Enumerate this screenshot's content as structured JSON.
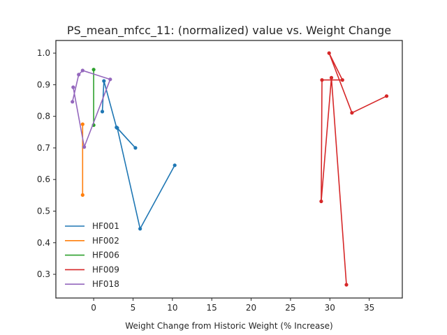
{
  "chart_data": {
    "type": "line",
    "title": "PS_mean_mfcc_11: (normalized) value vs. Weight Change",
    "xlabel": "Weight Change from Historic Weight (% Increase)",
    "ylabel": "",
    "xlim": [
      -4.8,
      39.2
    ],
    "ylim": [
      0.225,
      1.04
    ],
    "xticks": [
      0,
      5,
      10,
      15,
      20,
      25,
      30,
      35
    ],
    "yticks": [
      0.3,
      0.4,
      0.5,
      0.6,
      0.7,
      0.8,
      0.9,
      1.0
    ],
    "xtick_labels": [
      "0",
      "5",
      "10",
      "15",
      "20",
      "25",
      "30",
      "35"
    ],
    "ytick_labels": [
      "0.3",
      "0.4",
      "0.5",
      "0.6",
      "0.7",
      "0.8",
      "0.9",
      "1.0"
    ],
    "grid": false,
    "legend_position": "lower-left",
    "series": [
      {
        "name": "HF001",
        "color": "#1f77b4",
        "points": [
          [
            1.1,
            0.815
          ],
          [
            1.3,
            0.912
          ],
          [
            2.9,
            0.765
          ],
          [
            5.3,
            0.7
          ],
          [
            3.0,
            0.763
          ],
          [
            5.9,
            0.444
          ],
          [
            10.3,
            0.645
          ]
        ]
      },
      {
        "name": "HF002",
        "color": "#ff7f0e",
        "points": [
          [
            -1.4,
            0.775
          ],
          [
            -1.4,
            0.551
          ]
        ]
      },
      {
        "name": "HF006",
        "color": "#2ca02c",
        "points": [
          [
            0.0,
            0.948
          ],
          [
            0.0,
            0.772
          ]
        ]
      },
      {
        "name": "HF009",
        "color": "#d62728",
        "points": [
          [
            32.1,
            0.267
          ],
          [
            30.2,
            0.922
          ],
          [
            28.9,
            0.531
          ],
          [
            29.0,
            0.915
          ],
          [
            31.6,
            0.915
          ],
          [
            29.9,
            1.0
          ],
          [
            32.8,
            0.811
          ],
          [
            37.2,
            0.864
          ]
        ]
      },
      {
        "name": "HF018",
        "color": "#9467bd",
        "points": [
          [
            -2.7,
            0.846
          ],
          [
            -1.9,
            0.932
          ],
          [
            -1.4,
            0.945
          ],
          [
            2.1,
            0.917
          ],
          [
            -1.2,
            0.703
          ],
          [
            -2.6,
            0.892
          ]
        ]
      }
    ]
  }
}
